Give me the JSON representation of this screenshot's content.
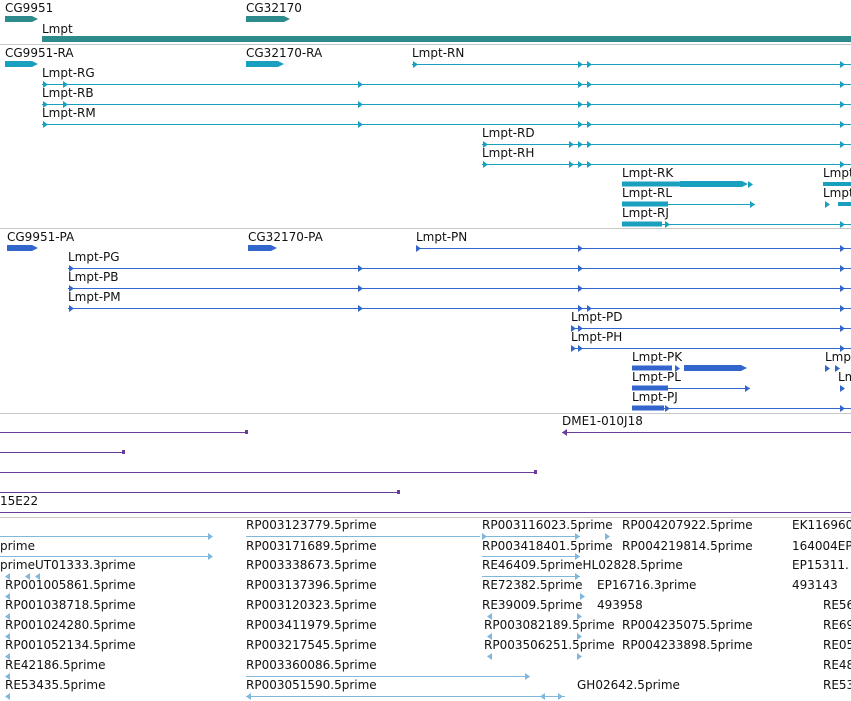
{
  "colors": {
    "gene": "#2e8b8b",
    "transcript": "#1aa0bf",
    "protein": "#3366cc",
    "clone": "#6a3d9a",
    "est": "#7fb8dc",
    "separator": "#c8c8c8"
  },
  "tracks": {
    "genes": [
      {
        "label": "CG9951"
      },
      {
        "label": "CG32170"
      },
      {
        "label": "Lmpt"
      }
    ],
    "transcripts": [
      {
        "label": "CG9951-RA"
      },
      {
        "label": "CG32170-RA"
      },
      {
        "label": "Lmpt-RN"
      },
      {
        "label": "Lmpt-RG"
      },
      {
        "label": "Lmpt-RB"
      },
      {
        "label": "Lmpt-RM"
      },
      {
        "label": "Lmpt-RD"
      },
      {
        "label": "Lmpt-RH"
      },
      {
        "label": "Lmpt-RK"
      },
      {
        "label": "Lmpt-RL"
      },
      {
        "label": "Lmpt-RJ"
      },
      {
        "label": "Lmpt"
      },
      {
        "label": "Lmpt"
      }
    ],
    "proteins": [
      {
        "label": "CG9951-PA"
      },
      {
        "label": "CG32170-PA"
      },
      {
        "label": "Lmpt-PN"
      },
      {
        "label": "Lmpt-PG"
      },
      {
        "label": "Lmpt-PB"
      },
      {
        "label": "Lmpt-PM"
      },
      {
        "label": "Lmpt-PD"
      },
      {
        "label": "Lmpt-PH"
      },
      {
        "label": "Lmpt-PK"
      },
      {
        "label": "Lmpt-PL"
      },
      {
        "label": "Lmpt-PJ"
      },
      {
        "label": "Lmp"
      },
      {
        "label": "Lm"
      }
    ],
    "clones": [
      {
        "label": "DME1-010J18"
      },
      {
        "label": "15E22"
      }
    ],
    "ests": [
      {
        "label": "RP003123779.5prime"
      },
      {
        "label": "RP003116023.5prime"
      },
      {
        "label": "RP004207922.5prime"
      },
      {
        "label": "EK116960"
      },
      {
        "label": "prime"
      },
      {
        "label": "RP003171689.5prime"
      },
      {
        "label": "RP003418401.5prime"
      },
      {
        "label": "RP004219814.5prime"
      },
      {
        "label": "164004EP"
      },
      {
        "label": "primeUT01333.3prime"
      },
      {
        "label": "RP003338673.5prime"
      },
      {
        "label": "RE46409.5primeHL02828.5prime"
      },
      {
        "label": "EP15311."
      },
      {
        "label": "RP001005861.5prime"
      },
      {
        "label": "RP003137396.5prime"
      },
      {
        "label": "RE72382.5prime"
      },
      {
        "label": "EP16716.3prime"
      },
      {
        "label": "493143"
      },
      {
        "label": "RP001038718.5prime"
      },
      {
        "label": "RP003120323.5prime"
      },
      {
        "label": "RE39009.5prime"
      },
      {
        "label": "493958"
      },
      {
        "label": "RE56"
      },
      {
        "label": "RP001024280.5prime"
      },
      {
        "label": "RP003411979.5prime"
      },
      {
        "label": "RP003082189.5prime"
      },
      {
        "label": "RP004235075.5prime"
      },
      {
        "label": "RE69"
      },
      {
        "label": "RP001052134.5prime"
      },
      {
        "label": "RP003217545.5prime"
      },
      {
        "label": "RP003506251.5prime"
      },
      {
        "label": "RP004233898.5prime"
      },
      {
        "label": "RE05"
      },
      {
        "label": "RE42186.5prime"
      },
      {
        "label": "RP003360086.5prime"
      },
      {
        "label": "RE48"
      },
      {
        "label": "RE53435.5prime"
      },
      {
        "label": "RP003051590.5prime"
      },
      {
        "label": "GH02642.5prime"
      },
      {
        "label": "RE53"
      }
    ]
  }
}
